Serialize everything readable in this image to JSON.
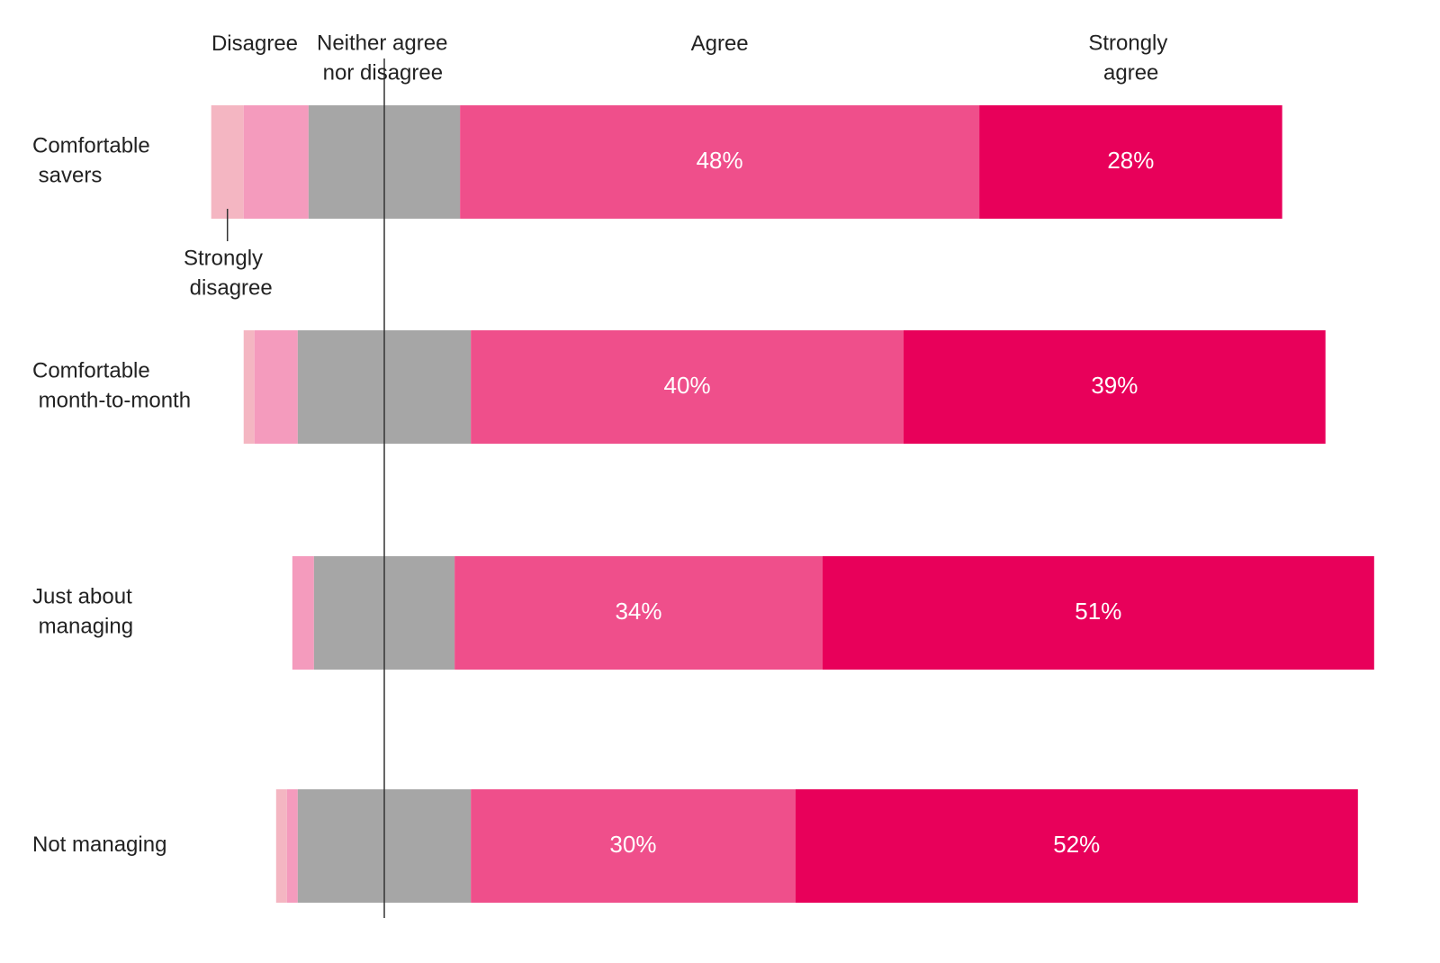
{
  "chart_data": {
    "type": "diverging-bar",
    "categories": [
      "Comfortable savers",
      "Comfortable month-to-month",
      "Just about managing",
      "Not managing"
    ],
    "series": [
      {
        "name": "Strongly disagree",
        "color": "#f4b6c2",
        "values": [
          3,
          1,
          0,
          1
        ]
      },
      {
        "name": "Disagree",
        "color": "#f49bbd",
        "values": [
          6,
          4,
          2,
          1
        ]
      },
      {
        "name": "Neither agree nor disagree",
        "color": "#a6a6a6",
        "values": [
          14,
          16,
          13,
          16
        ]
      },
      {
        "name": "Agree",
        "color": "#ef4f8b",
        "values": [
          48,
          40,
          34,
          30
        ],
        "value_labels": [
          "48%",
          "40%",
          "34%",
          "30%"
        ]
      },
      {
        "name": "Strongly agree",
        "color": "#e8005a",
        "values": [
          28,
          39,
          51,
          52
        ],
        "value_labels": [
          "28%",
          "39%",
          "51%",
          "52%"
        ]
      }
    ]
  }
}
